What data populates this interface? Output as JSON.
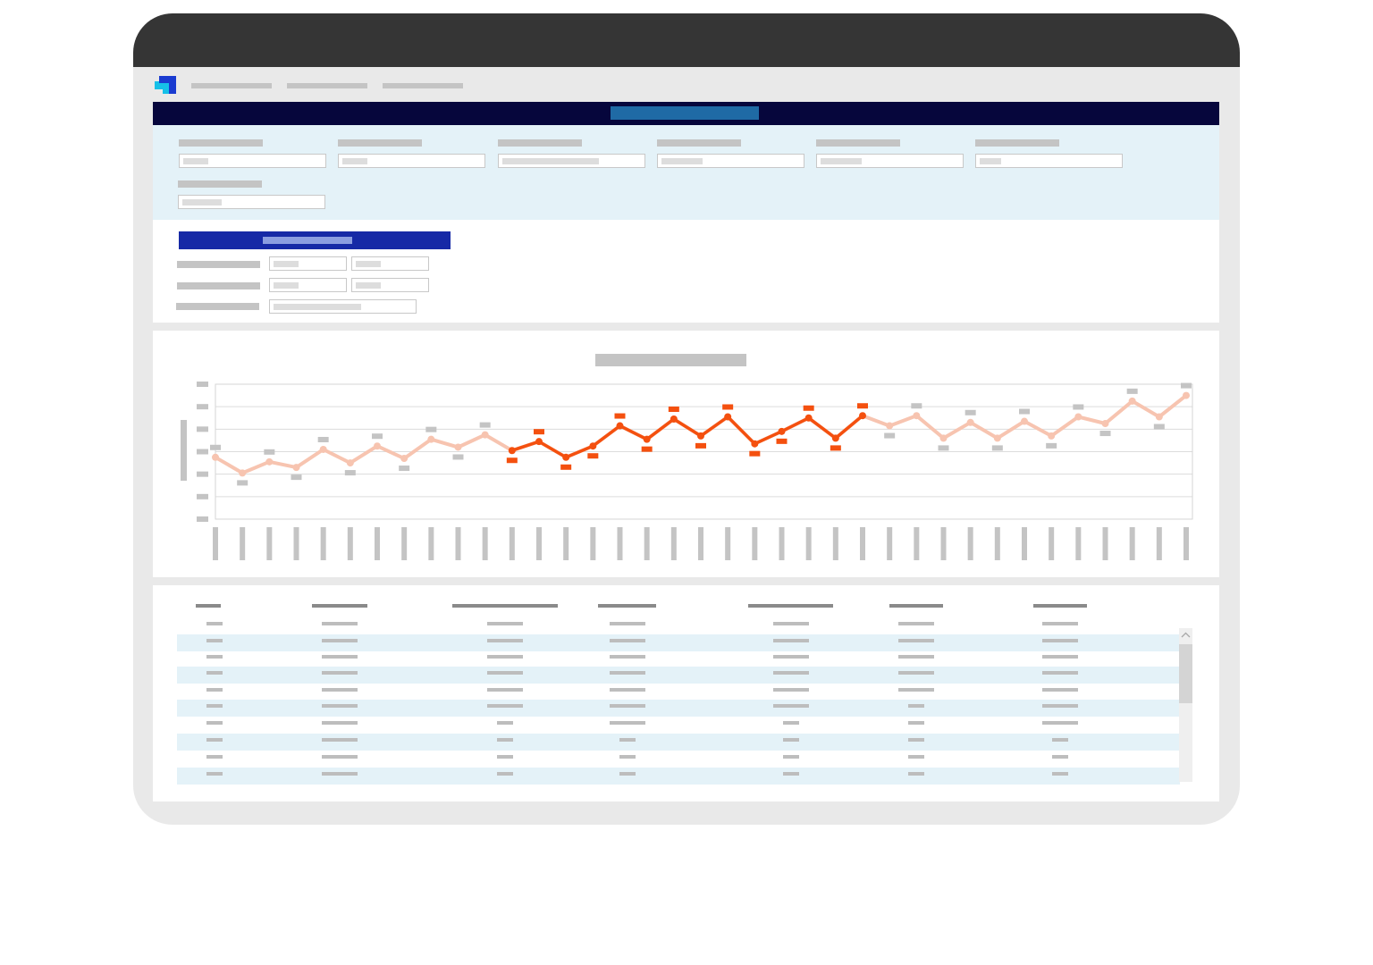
{
  "window": {
    "frame_color": "#353535",
    "body_color": "#e9e9e9"
  },
  "app": {
    "logo_icon": "app-logo-icon",
    "logo_colors": [
      "#1a3bd0",
      "#16c0e8"
    ]
  },
  "nav": {
    "items": [
      "",
      "",
      ""
    ]
  },
  "title_bar": {
    "background": "#06063c",
    "title": ""
  },
  "filters": {
    "background": "#e4f2f8",
    "fields": [
      {
        "label": "",
        "value": ""
      },
      {
        "label": "",
        "value": ""
      },
      {
        "label": "",
        "value": ""
      },
      {
        "label": "",
        "value": ""
      },
      {
        "label": "",
        "value": ""
      },
      {
        "label": "",
        "value": ""
      },
      {
        "label": "",
        "value": ""
      }
    ]
  },
  "parameters": {
    "header_color": "#1629a6",
    "title": "",
    "rows": [
      {
        "label": "",
        "values": [
          "",
          ""
        ]
      },
      {
        "label": "",
        "values": [
          "",
          ""
        ]
      },
      {
        "label": "",
        "values": [
          ""
        ]
      }
    ]
  },
  "chart_data": {
    "type": "line",
    "title": "",
    "xlabel": "",
    "ylabel": "",
    "grid": true,
    "legend": "none",
    "ylim": [
      0,
      6
    ],
    "categories": [
      "",
      "",
      "",
      "",
      "",
      "",
      "",
      "",
      "",
      "",
      "",
      "",
      "",
      "",
      "",
      "",
      "",
      "",
      "",
      "",
      "",
      "",
      "",
      "",
      "",
      "",
      "",
      "",
      "",
      "",
      "",
      "",
      "",
      "",
      "",
      "",
      ""
    ],
    "highlight_range": [
      11,
      24
    ],
    "colors": {
      "base": "#f7c4b0",
      "highlight": "#f4500f",
      "label_default": "#c4c4c4"
    },
    "series": [
      {
        "values": [
          2.75,
          2.05,
          2.55,
          2.3,
          3.1,
          2.5,
          3.25,
          2.7,
          3.55,
          3.2,
          3.75,
          3.05,
          3.45,
          2.75,
          3.25,
          4.15,
          3.55,
          4.45,
          3.7,
          4.55,
          3.35,
          3.9,
          4.5,
          3.6,
          4.6,
          4.15,
          4.6,
          3.6,
          4.3,
          3.6,
          4.35,
          3.7,
          4.55,
          4.25,
          5.25,
          4.55,
          5.5
        ]
      }
    ]
  },
  "table": {
    "columns": [
      "",
      "",
      "",
      "",
      "",
      "",
      ""
    ],
    "rows": [
      [
        "",
        "",
        "",
        "",
        "",
        "",
        ""
      ],
      [
        "",
        "",
        "",
        "",
        "",
        "",
        ""
      ],
      [
        "",
        "",
        "",
        "",
        "",
        "",
        ""
      ],
      [
        "",
        "",
        "",
        "",
        "",
        "",
        ""
      ],
      [
        "",
        "",
        "",
        "",
        "",
        "",
        ""
      ],
      [
        "",
        "",
        "",
        "",
        "",
        "",
        ""
      ],
      [
        "",
        "",
        "",
        "",
        "",
        "",
        ""
      ],
      [
        "",
        "",
        "",
        "",
        "",
        "",
        ""
      ],
      [
        "",
        "",
        "",
        "",
        "",
        "",
        ""
      ],
      [
        "",
        "",
        "",
        "",
        "",
        "",
        ""
      ]
    ],
    "row_stripe": "#e4f2f8",
    "scroll_icon": "chevron-up-icon"
  }
}
